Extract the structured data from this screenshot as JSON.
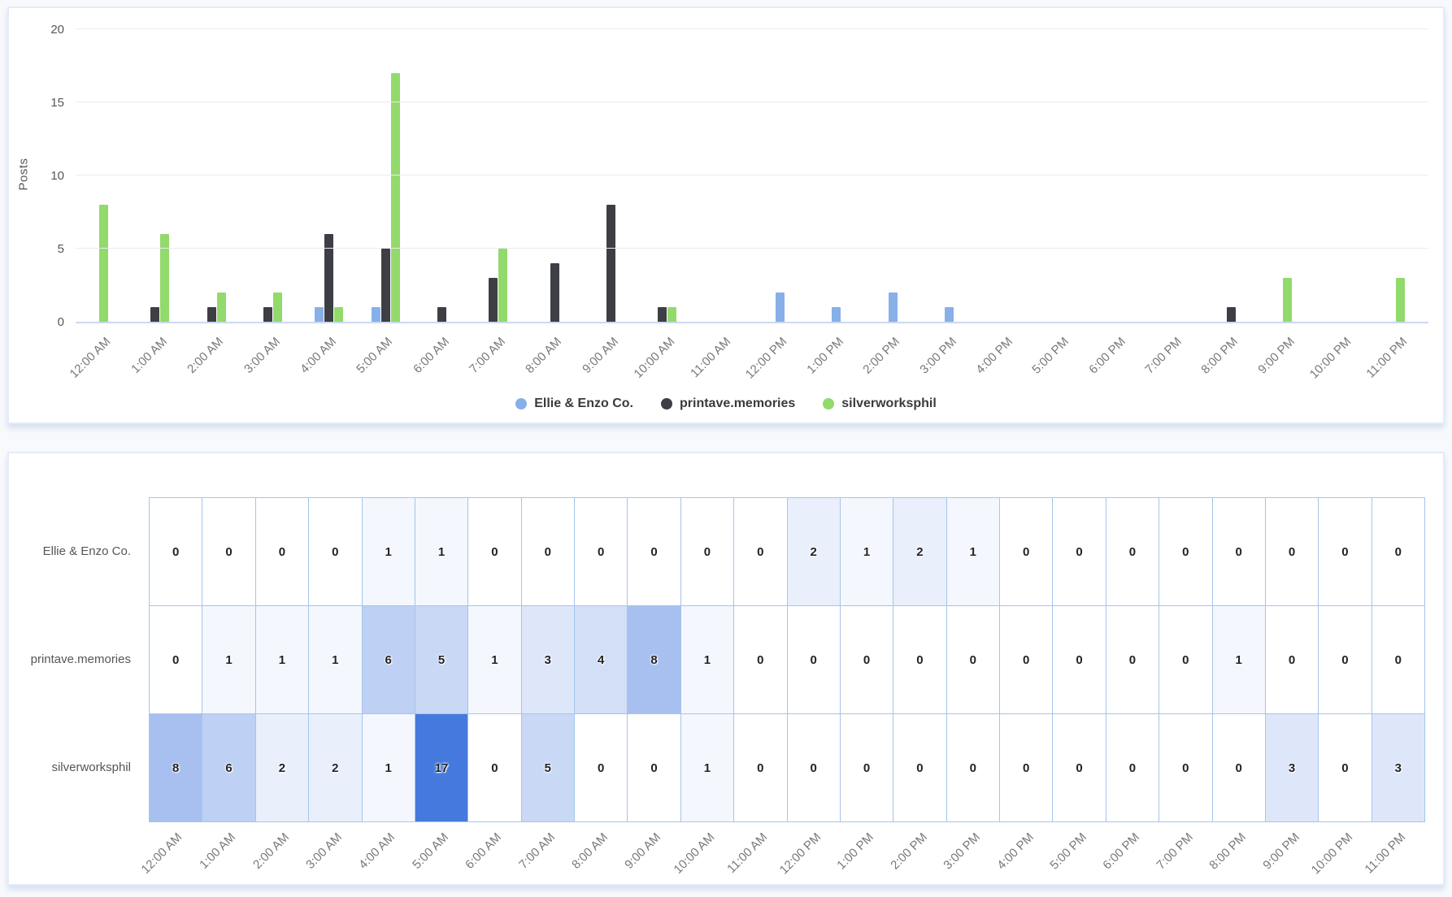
{
  "chart_data": [
    {
      "type": "bar",
      "ylabel": "Posts",
      "xlabel": "",
      "ylim": [
        0,
        20
      ],
      "yticks": [
        0,
        5,
        10,
        15,
        20
      ],
      "grid": true,
      "legend_position": "bottom",
      "categories": [
        "12:00 AM",
        "1:00 AM",
        "2:00 AM",
        "3:00 AM",
        "4:00 AM",
        "5:00 AM",
        "6:00 AM",
        "7:00 AM",
        "8:00 AM",
        "9:00 AM",
        "10:00 AM",
        "11:00 AM",
        "12:00 PM",
        "1:00 PM",
        "2:00 PM",
        "3:00 PM",
        "4:00 PM",
        "5:00 PM",
        "6:00 PM",
        "7:00 PM",
        "8:00 PM",
        "9:00 PM",
        "10:00 PM",
        "11:00 PM"
      ],
      "series": [
        {
          "name": "Ellie & Enzo Co.",
          "color": "#88b0e8",
          "values": [
            0,
            0,
            0,
            0,
            1,
            1,
            0,
            0,
            0,
            0,
            0,
            0,
            2,
            1,
            2,
            1,
            0,
            0,
            0,
            0,
            0,
            0,
            0,
            0
          ]
        },
        {
          "name": "printave.memories",
          "color": "#3e3f45",
          "values": [
            0,
            1,
            1,
            1,
            6,
            5,
            1,
            3,
            4,
            8,
            1,
            0,
            0,
            0,
            0,
            0,
            0,
            0,
            0,
            0,
            1,
            0,
            0,
            0
          ]
        },
        {
          "name": "silverworksphil",
          "color": "#92da6c",
          "values": [
            8,
            6,
            2,
            2,
            1,
            17,
            0,
            5,
            0,
            0,
            1,
            0,
            0,
            0,
            0,
            0,
            0,
            0,
            0,
            0,
            0,
            3,
            0,
            3
          ]
        }
      ]
    },
    {
      "type": "heatmap",
      "categories": [
        "12:00 AM",
        "1:00 AM",
        "2:00 AM",
        "3:00 AM",
        "4:00 AM",
        "5:00 AM",
        "6:00 AM",
        "7:00 AM",
        "8:00 AM",
        "9:00 AM",
        "10:00 AM",
        "11:00 AM",
        "12:00 PM",
        "1:00 PM",
        "2:00 PM",
        "3:00 PM",
        "4:00 PM",
        "5:00 PM",
        "6:00 PM",
        "7:00 PM",
        "8:00 PM",
        "9:00 PM",
        "10:00 PM",
        "11:00 PM"
      ],
      "min_color": "#ffffff",
      "max_color": "#4679dd",
      "max_value": 17,
      "series": [
        {
          "name": "Ellie & Enzo Co.",
          "values": [
            0,
            0,
            0,
            0,
            1,
            1,
            0,
            0,
            0,
            0,
            0,
            0,
            2,
            1,
            2,
            1,
            0,
            0,
            0,
            0,
            0,
            0,
            0,
            0
          ]
        },
        {
          "name": "printave.memories",
          "values": [
            0,
            1,
            1,
            1,
            6,
            5,
            1,
            3,
            4,
            8,
            1,
            0,
            0,
            0,
            0,
            0,
            0,
            0,
            0,
            0,
            1,
            0,
            0,
            0
          ]
        },
        {
          "name": "silverworksphil",
          "values": [
            8,
            6,
            2,
            2,
            1,
            17,
            0,
            5,
            0,
            0,
            1,
            0,
            0,
            0,
            0,
            0,
            0,
            0,
            0,
            0,
            0,
            3,
            0,
            3
          ]
        }
      ]
    }
  ]
}
